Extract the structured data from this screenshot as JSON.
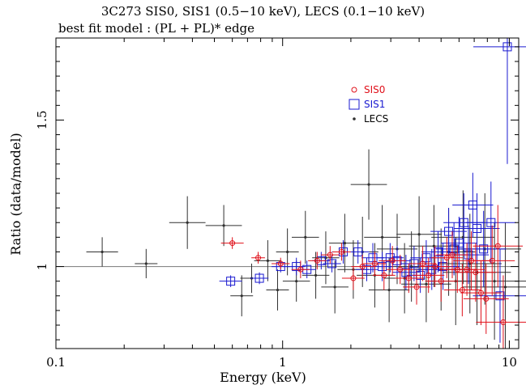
{
  "chart_data": {
    "type": "scatter",
    "title": "3C273 SIS0, SIS1 (0.5−10 keV), LECS (0.1−10 keV)",
    "subtitle": "best fit model : (PL + PL)* edge",
    "xlabel": "Energy (keV)",
    "ylabel": "Ratio (data/model)",
    "xscale": "log",
    "xlim": [
      0.1,
      11
    ],
    "ylim": [
      0.72,
      1.78
    ],
    "xticks": [
      {
        "value": 0.1,
        "label": "0.1"
      },
      {
        "value": 1,
        "label": "1"
      },
      {
        "value": 10,
        "label": "10"
      }
    ],
    "yticks": [
      {
        "value": 1,
        "label": "1"
      },
      {
        "value": 1.5,
        "label": "1.5"
      }
    ],
    "reference_line": 1,
    "legend_position": "top-center",
    "series": [
      {
        "name": "SIS0",
        "marker": "circle",
        "color": "#e0101a",
        "points": [
          [
            0.6,
            1.08,
            0.05,
            0.02
          ],
          [
            0.78,
            1.03,
            0.03,
            0.02
          ],
          [
            0.98,
            1.01,
            0.04,
            0.02
          ],
          [
            1.2,
            0.99,
            0.04,
            0.03
          ],
          [
            1.42,
            1.02,
            0.04,
            0.03
          ],
          [
            1.62,
            1.04,
            0.04,
            0.03
          ],
          [
            1.82,
            1.05,
            0.04,
            0.03
          ],
          [
            2.05,
            0.96,
            0.05,
            0.04
          ],
          [
            2.25,
            1.0,
            0.05,
            0.04
          ],
          [
            2.55,
            1.01,
            0.05,
            0.04
          ],
          [
            2.8,
            0.97,
            0.05,
            0.05
          ],
          [
            3.05,
            1.02,
            0.06,
            0.05
          ],
          [
            3.3,
            0.99,
            0.06,
            0.05
          ],
          [
            3.6,
            0.96,
            0.06,
            0.05
          ],
          [
            3.9,
            0.93,
            0.06,
            0.06
          ],
          [
            4.15,
            1.01,
            0.06,
            0.06
          ],
          [
            4.4,
            0.97,
            0.07,
            0.06
          ],
          [
            4.7,
            1.0,
            0.07,
            0.07
          ],
          [
            5.0,
            0.95,
            0.07,
            0.07
          ],
          [
            5.3,
            1.03,
            0.07,
            0.07
          ],
          [
            5.6,
            1.04,
            0.07,
            0.08
          ],
          [
            5.9,
            0.99,
            0.08,
            0.08
          ],
          [
            6.2,
            0.92,
            0.08,
            0.09
          ],
          [
            6.5,
            0.99,
            0.08,
            0.09
          ],
          [
            6.8,
            1.02,
            0.08,
            0.1
          ],
          [
            7.1,
            0.98,
            0.09,
            0.1
          ],
          [
            7.5,
            0.91,
            0.09,
            0.11
          ],
          [
            7.9,
            0.89,
            0.1,
            0.12
          ],
          [
            8.4,
            1.02,
            0.1,
            0.12
          ],
          [
            8.9,
            1.07,
            0.11,
            0.14
          ],
          [
            9.4,
            0.81,
            0.12,
            0.16
          ]
        ]
      },
      {
        "name": "SIS1",
        "marker": "square",
        "color": "#1a1ad0",
        "points": [
          [
            0.59,
            0.95,
            0.05,
            0.02
          ],
          [
            0.79,
            0.96,
            0.04,
            0.02
          ],
          [
            0.98,
            1.0,
            0.04,
            0.02
          ],
          [
            1.15,
            1.0,
            0.04,
            0.03
          ],
          [
            1.28,
            0.99,
            0.04,
            0.03
          ],
          [
            1.48,
            1.02,
            0.04,
            0.03
          ],
          [
            1.65,
            1.01,
            0.04,
            0.03
          ],
          [
            1.85,
            1.05,
            0.05,
            0.04
          ],
          [
            2.15,
            1.05,
            0.05,
            0.04
          ],
          [
            2.35,
            0.99,
            0.05,
            0.04
          ],
          [
            2.5,
            1.03,
            0.05,
            0.05
          ],
          [
            2.75,
            1.0,
            0.05,
            0.05
          ],
          [
            2.98,
            1.03,
            0.06,
            0.05
          ],
          [
            3.2,
            1.02,
            0.06,
            0.05
          ],
          [
            3.5,
            0.98,
            0.06,
            0.06
          ],
          [
            3.8,
            1.01,
            0.06,
            0.06
          ],
          [
            4.05,
            0.97,
            0.06,
            0.06
          ],
          [
            4.3,
            1.03,
            0.07,
            0.06
          ],
          [
            4.55,
            0.99,
            0.07,
            0.07
          ],
          [
            4.85,
            1.05,
            0.07,
            0.07
          ],
          [
            5.1,
            1.0,
            0.07,
            0.08
          ],
          [
            5.4,
            1.12,
            0.08,
            0.08
          ],
          [
            5.7,
            1.06,
            0.08,
            0.09
          ],
          [
            6.0,
            1.08,
            0.08,
            0.09
          ],
          [
            6.3,
            1.15,
            0.09,
            0.1
          ],
          [
            6.6,
            1.04,
            0.09,
            0.1
          ],
          [
            6.9,
            1.21,
            0.09,
            0.11
          ],
          [
            7.2,
            1.13,
            0.1,
            0.12
          ],
          [
            7.7,
            1.06,
            0.1,
            0.13
          ],
          [
            8.3,
            1.15,
            0.11,
            0.14
          ],
          [
            9.1,
            0.9,
            0.12,
            0.16
          ],
          [
            9.8,
            1.75,
            0.15,
            0.4
          ]
        ]
      },
      {
        "name": "LECS",
        "marker": "dot",
        "color": "#303030",
        "points": [
          [
            0.16,
            1.05,
            0.07,
            0.05
          ],
          [
            0.25,
            1.01,
            0.05,
            0.05
          ],
          [
            0.38,
            1.15,
            0.08,
            0.09
          ],
          [
            0.55,
            1.14,
            0.08,
            0.07
          ],
          [
            0.66,
            0.9,
            0.05,
            0.07
          ],
          [
            0.73,
            0.96,
            0.05,
            0.05
          ],
          [
            0.86,
            1.02,
            0.06,
            0.07
          ],
          [
            0.95,
            0.92,
            0.05,
            0.07
          ],
          [
            1.05,
            1.05,
            0.05,
            0.08
          ],
          [
            1.15,
            0.95,
            0.06,
            0.07
          ],
          [
            1.26,
            1.1,
            0.06,
            0.09
          ],
          [
            1.4,
            0.97,
            0.06,
            0.08
          ],
          [
            1.55,
            1.03,
            0.06,
            0.09
          ],
          [
            1.7,
            0.93,
            0.06,
            0.09
          ],
          [
            1.88,
            1.08,
            0.07,
            0.1
          ],
          [
            2.05,
            0.99,
            0.07,
            0.1
          ],
          [
            2.25,
            1.05,
            0.07,
            0.12
          ],
          [
            2.4,
            1.28,
            0.08,
            0.12
          ],
          [
            2.55,
            0.97,
            0.08,
            0.11
          ],
          [
            2.75,
            1.1,
            0.08,
            0.11
          ],
          [
            2.95,
            0.92,
            0.09,
            0.11
          ],
          [
            3.2,
            1.06,
            0.09,
            0.12
          ],
          [
            3.45,
            0.96,
            0.09,
            0.12
          ],
          [
            3.7,
            1.0,
            0.1,
            0.12
          ],
          [
            4.0,
            1.11,
            0.1,
            0.13
          ],
          [
            4.3,
            0.94,
            0.11,
            0.13
          ],
          [
            4.65,
            1.07,
            0.11,
            0.14
          ],
          [
            5.0,
            0.99,
            0.12,
            0.14
          ],
          [
            5.4,
            1.05,
            0.12,
            0.15
          ],
          [
            5.8,
            0.95,
            0.13,
            0.15
          ],
          [
            6.25,
            1.1,
            0.14,
            0.16
          ],
          [
            6.7,
            1.01,
            0.14,
            0.17
          ],
          [
            7.2,
            0.98,
            0.15,
            0.18
          ],
          [
            7.8,
            1.06,
            0.16,
            0.19
          ],
          [
            8.6,
            0.95,
            0.17,
            0.2
          ],
          [
            9.6,
            0.93,
            0.19,
            0.22
          ]
        ]
      }
    ]
  }
}
